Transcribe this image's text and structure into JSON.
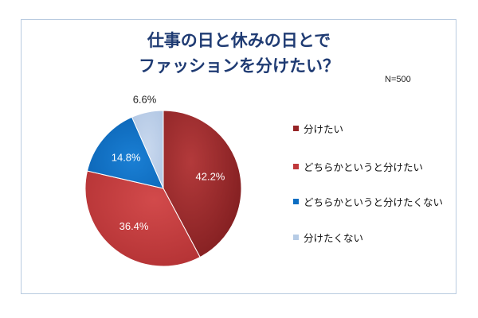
{
  "title_lines": [
    "仕事の日と休みの日とで",
    "ファッションを分けたい？"
  ],
  "sample_size": "N=500",
  "chart_data": {
    "type": "pie",
    "title": "仕事の日と休みの日とでファッションを分けたい？",
    "categories": [
      "分けたい",
      "どちらかというと分けたい",
      "どちらかというと分けたくない",
      "分けたくない"
    ],
    "values": [
      42.2,
      36.4,
      14.8,
      6.6
    ],
    "value_labels": [
      "42.2%",
      "36.4%",
      "14.8%",
      "6.6%"
    ],
    "colors": [
      "#962426",
      "#c0393b",
      "#0b6dc2",
      "#b6cbe5"
    ],
    "legend": "right",
    "start": "top",
    "direction": "clockwise"
  }
}
